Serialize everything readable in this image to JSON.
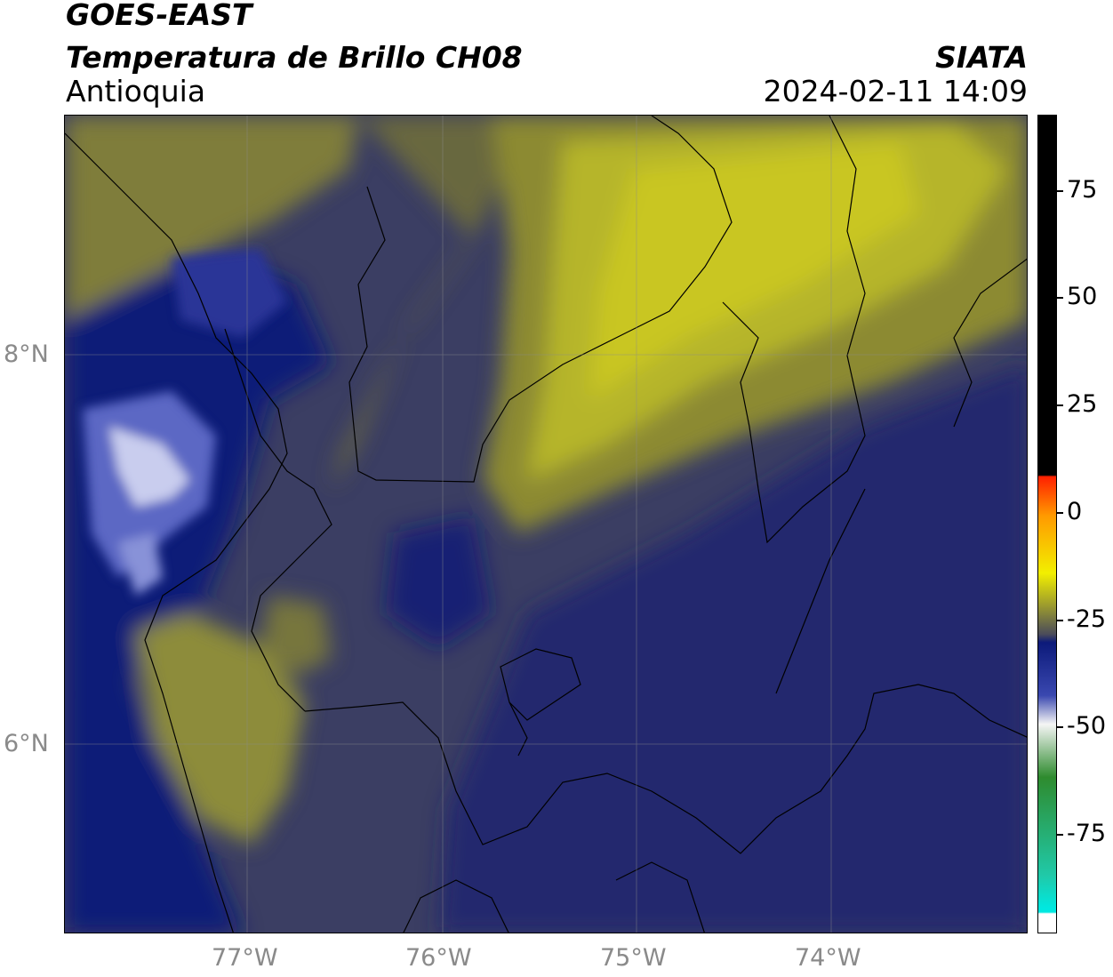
{
  "header": {
    "satellite": "GOES-EAST",
    "product": "Temperatura de Brillo CH08",
    "region": "Antioquia",
    "brand": "SIATA",
    "datetime": "2024-02-11 14:09"
  },
  "map": {
    "lat_labels": [
      "8°N",
      "6°N"
    ],
    "lon_labels": [
      "77°W",
      "76°W",
      "75°W",
      "74°W"
    ]
  },
  "colorbar": {
    "labels": [
      "75",
      "50",
      "25",
      "0",
      "-25",
      "-50",
      "-75"
    ],
    "colors": {
      "black": "#000000",
      "red": "#ff2000",
      "orange": "#ff9a00",
      "yellow": "#f2ef00",
      "olive": "#9b9a2e",
      "gray": "#4a4b5a",
      "navy": "#0c1a7a",
      "blue": "#3a48b0",
      "white": "#f5f5f5",
      "green": "#2e8b2e",
      "teal": "#20c9a8",
      "cyan": "#00e8e0"
    }
  }
}
